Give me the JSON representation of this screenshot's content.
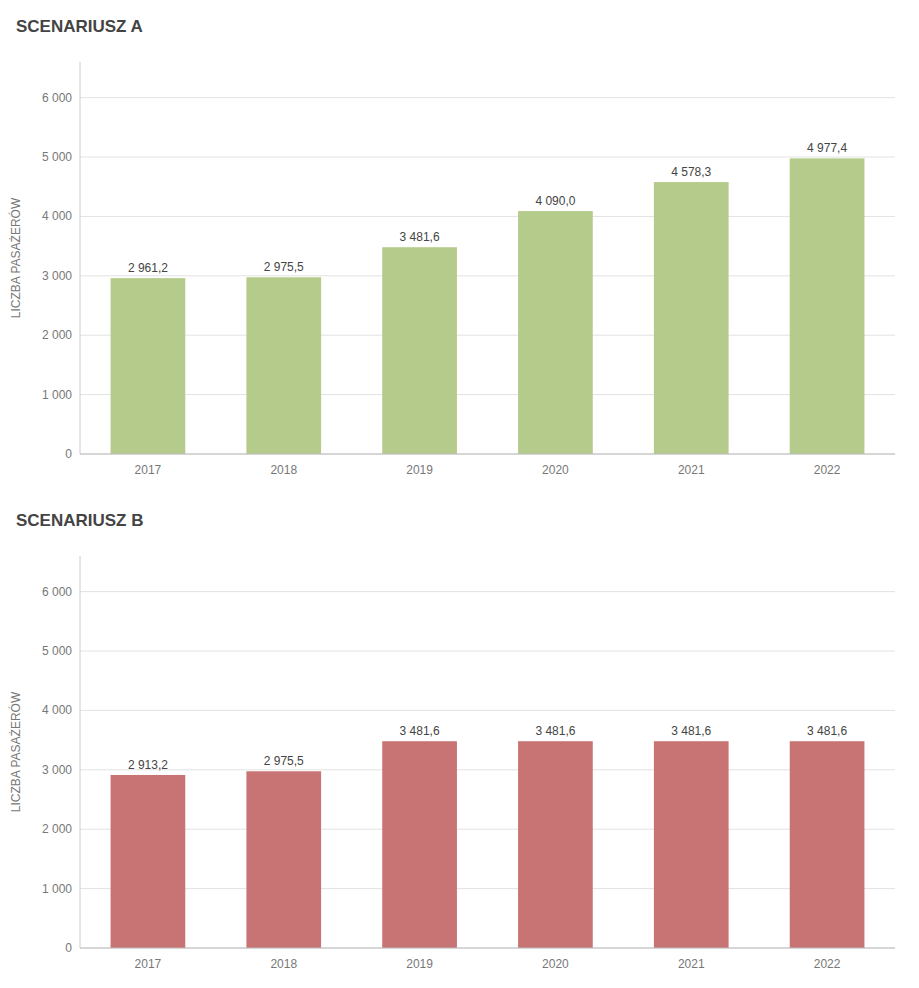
{
  "chart_data": [
    {
      "type": "bar",
      "title": "SCENARIUSZ A",
      "categories": [
        "2017",
        "2018",
        "2019",
        "2020",
        "2021",
        "2022"
      ],
      "values": [
        2961.2,
        2975.5,
        3481.6,
        4090.0,
        4578.3,
        4977.4
      ],
      "value_labels": [
        "2 961,2",
        "2 975,5",
        "3 481,6",
        "4 090,0",
        "4 578,3",
        "4 977,4"
      ],
      "color": "#b5cb8b",
      "ylabel": "LICZBA PASAŻERÓW",
      "ylim": [
        0,
        6600
      ],
      "yticks": [
        0,
        {
          "value": 1000,
          "label": "1 000"
        },
        {
          "value": 2000,
          "label": "2 000"
        },
        {
          "value": 3000,
          "label": "3 000"
        },
        {
          "value": 4000,
          "label": "4 000"
        },
        {
          "value": 5000,
          "label": "5 000"
        },
        {
          "value": 6000,
          "label": "6 000"
        }
      ],
      "grid": true
    },
    {
      "type": "bar",
      "title": "SCENARIUSZ B",
      "categories": [
        "2017",
        "2018",
        "2019",
        "2020",
        "2021",
        "2022"
      ],
      "values": [
        2913.2,
        2975.5,
        3481.6,
        3481.6,
        3481.6,
        3481.6
      ],
      "value_labels": [
        "2 913,2",
        "2 975,5",
        "3 481,6",
        "3 481,6",
        "3 481,6",
        "3 481,6"
      ],
      "color": "#c97474",
      "ylabel": "LICZBA PASAŻERÓW",
      "ylim": [
        0,
        6600
      ],
      "yticks": [
        0,
        {
          "value": 1000,
          "label": "1 000"
        },
        {
          "value": 2000,
          "label": "2 000"
        },
        {
          "value": 3000,
          "label": "3 000"
        },
        {
          "value": 4000,
          "label": "4 000"
        },
        {
          "value": 5000,
          "label": "5 000"
        },
        {
          "value": 6000,
          "label": "6 000"
        }
      ],
      "grid": true
    }
  ]
}
